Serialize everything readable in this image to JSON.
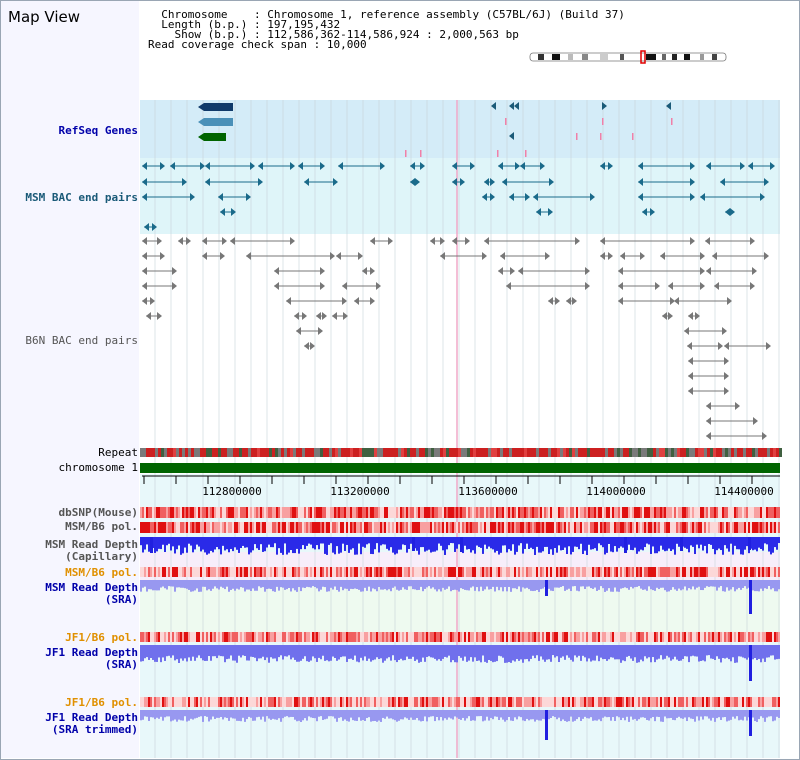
{
  "title": "Map View",
  "info": {
    "chromosome_label": "  Chromosome",
    "chromosome_value": "Chromosome 1, reference assembly (C57BL/6J) (Build 37)",
    "length_label": "  Length (b.p.)",
    "length_value": "197,195,432",
    "show_label": "    Show (b.p.)",
    "show_value": "112,586,362-114,586,924 : 2,000,563 bp",
    "span_label": "Read coverage check span",
    "span_value": "10,000"
  },
  "tracks": {
    "refseq": "RefSeq Genes",
    "msm_bac": "MSM BAC end pairs",
    "b6n_bac": "B6N BAC end pairs",
    "repeat": "Repeat",
    "chromosome": "chromosome 1",
    "dbsnp": "dbSNP(Mouse)",
    "msm_b6_pol_1": "MSM/B6 pol.",
    "msm_depth_cap_1": "MSM Read Depth",
    "msm_depth_cap_2": "(Capillary)",
    "msm_b6_pol_2": "MSM/B6 pol.",
    "msm_depth_sra_1": "MSM Read Depth",
    "msm_depth_sra_2": "(SRA)",
    "jf1_b6_pol_1": "JF1/B6 pol.",
    "jf1_depth_sra_1": "JF1 Read Depth",
    "jf1_depth_sra_2": "(SRA)",
    "jf1_b6_pol_2": "JF1/B6 pol.",
    "jf1_depth_trim_1": "JF1 Read Depth",
    "jf1_depth_trim_2": "(SRA trimmed)"
  },
  "axis": {
    "ticks": [
      "112800000",
      "113200000",
      "113600000",
      "114000000",
      "114400000"
    ]
  },
  "colors": {
    "label_black": "#000000",
    "label_blue": "#0000aa",
    "label_teal": "#1a5a78",
    "label_gray": "#555555",
    "label_orange": "#e09000",
    "refseq_bg": "#d4ecf8",
    "msm_bg": "#dff5f9",
    "lower_bg": "#e8f8fa",
    "chrom_green": "#006400",
    "depth_blue": "#2020e0",
    "depth_light": "#8c8cf0"
  }
}
